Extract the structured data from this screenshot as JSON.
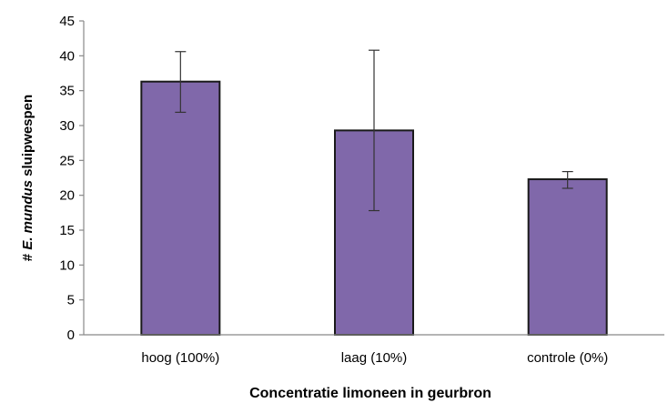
{
  "chart_data": {
    "type": "bar",
    "title": "",
    "categories": [
      "hoog (100%)",
      "laag (10%)",
      "controle (0%)"
    ],
    "values": [
      36.3,
      29.3,
      22.3
    ],
    "error_bars": {
      "lower": [
        31.9,
        17.8,
        21.0
      ],
      "upper": [
        40.6,
        40.8,
        23.4
      ]
    },
    "xlabel": "Concentratie limoneen in geurbron",
    "ylabel": {
      "prefix": "# ",
      "species": "E. mundus",
      "suffix": " sluipwespen"
    },
    "ylim": [
      0,
      45
    ],
    "yticks": [
      0,
      5,
      10,
      15,
      20,
      25,
      30,
      35,
      40,
      45
    ],
    "grid": false,
    "legend": "none",
    "colors": {
      "bar_fill": "#8068aa",
      "bar_stroke": "#1a1a1a",
      "axis": "#888888",
      "error_bar": "#333333"
    }
  }
}
